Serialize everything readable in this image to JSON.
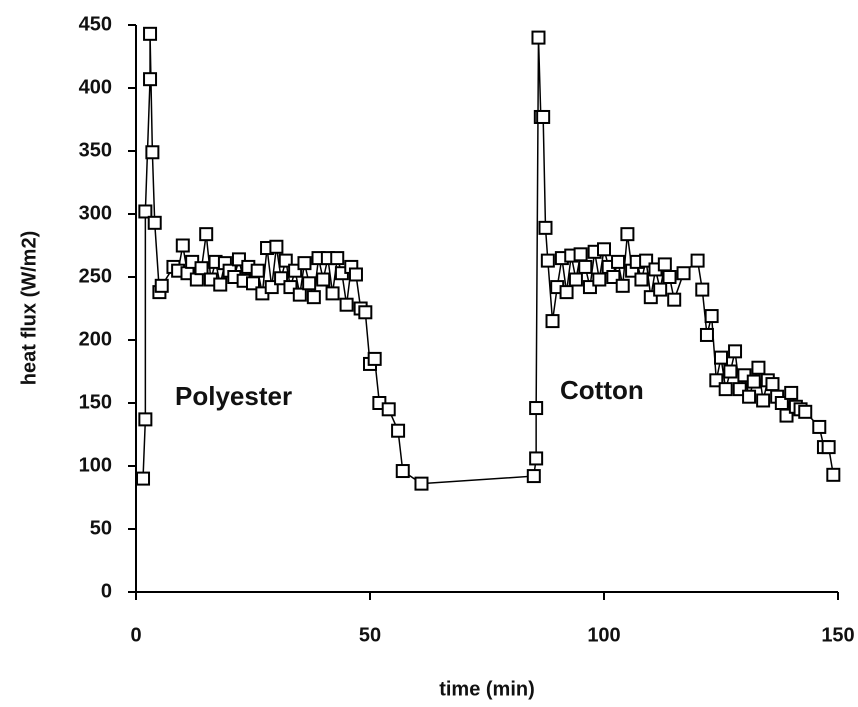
{
  "chart_data": {
    "type": "line",
    "x_label": "time (min)",
    "y_label": "heat  flux  (W/m2)",
    "annotations": [
      "Polyester",
      "Cotton"
    ],
    "xlim": [
      0,
      150
    ],
    "xticks": [
      0,
      50,
      100,
      150
    ],
    "ylim": [
      0,
      450
    ],
    "yticks": [
      0,
      50,
      100,
      150,
      200,
      250,
      300,
      350,
      400,
      450
    ],
    "grid": false,
    "marker": "square",
    "series": [
      {
        "color": "#000000",
        "x": [
          1.5,
          2,
          2,
          3,
          3,
          3.5,
          4,
          5,
          5.5,
          8,
          9,
          10,
          11,
          12,
          13,
          14,
          15,
          16,
          17,
          18,
          19,
          20,
          21,
          22,
          23,
          24,
          25,
          26,
          27,
          28,
          29,
          30,
          31,
          32,
          33,
          34,
          35,
          36,
          37,
          38,
          39,
          40,
          41,
          42,
          43,
          44,
          45,
          46,
          47,
          48,
          49,
          50,
          51,
          52,
          54,
          56,
          57,
          61,
          85,
          85.5,
          85.5,
          86,
          86.5,
          87,
          87.5,
          88,
          89,
          90,
          91,
          92,
          93,
          94,
          95,
          96,
          97,
          98,
          99,
          100,
          101,
          102,
          103,
          104,
          105,
          106,
          107,
          108,
          109,
          110,
          111,
          112,
          113,
          114,
          115,
          117,
          120,
          121,
          122,
          123,
          124,
          125,
          126,
          127,
          128,
          129,
          130,
          131,
          132,
          133,
          134,
          135,
          136,
          137,
          138,
          139,
          140,
          141,
          142,
          143,
          146,
          147,
          148,
          149
        ],
        "values": [
          90,
          137,
          302,
          407,
          443,
          349,
          293,
          238,
          243,
          258,
          255,
          275,
          253,
          262,
          248,
          257,
          284,
          248,
          262,
          244,
          261,
          255,
          250,
          264,
          247,
          258,
          245,
          255,
          237,
          273,
          242,
          274,
          249,
          263,
          242,
          255,
          236,
          261,
          245,
          234,
          265,
          248,
          265,
          237,
          265,
          253,
          228,
          258,
          252,
          225,
          222,
          181,
          185,
          150,
          145,
          128,
          96,
          86,
          92,
          106,
          146,
          440,
          377,
          377,
          289,
          263,
          215,
          242,
          265,
          238,
          267,
          248,
          268,
          258,
          242,
          270,
          248,
          272,
          258,
          250,
          262,
          243,
          284,
          255,
          262,
          248,
          263,
          234,
          256,
          240,
          260,
          250,
          232,
          253,
          263,
          240,
          204,
          219,
          168,
          186,
          161,
          175,
          191,
          161,
          172,
          155,
          167,
          178,
          152,
          168,
          165,
          155,
          150,
          140,
          158,
          147,
          145,
          143,
          131,
          115,
          115,
          93
        ]
      }
    ]
  }
}
